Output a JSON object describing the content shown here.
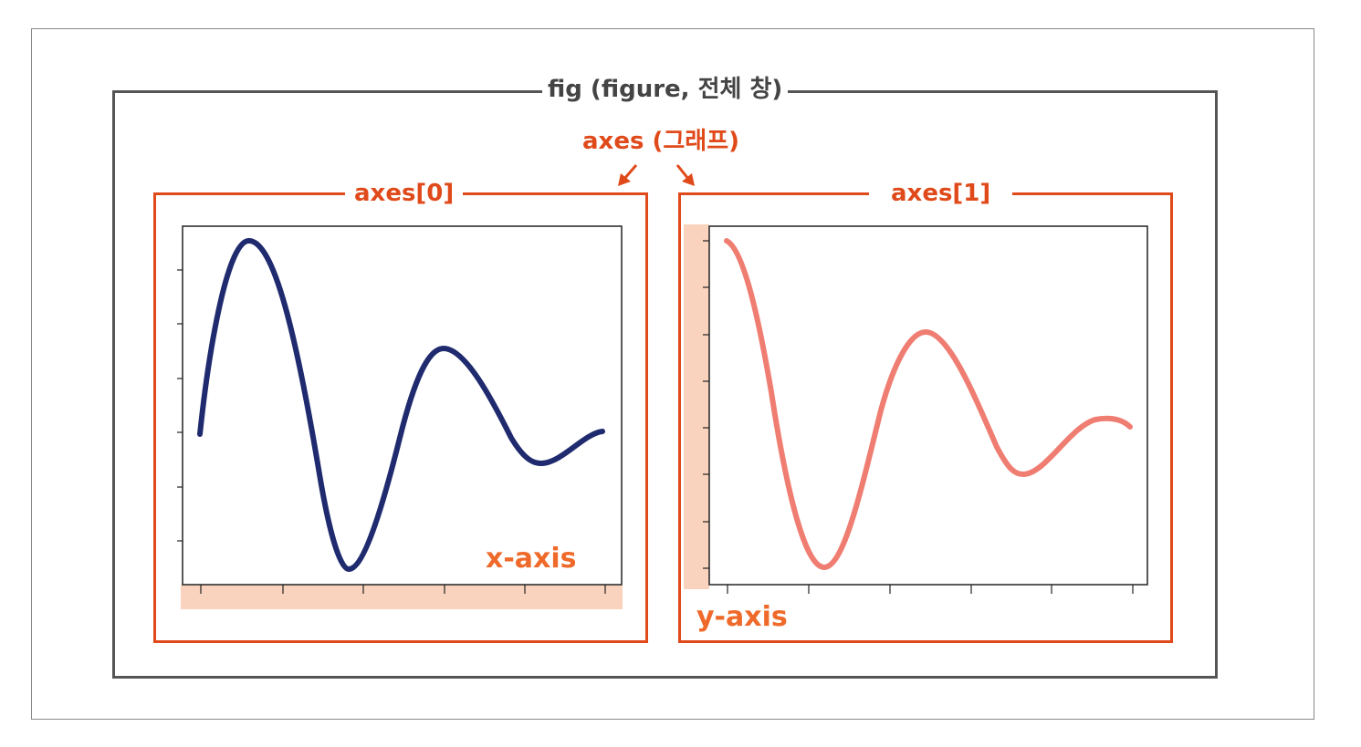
{
  "figure": {
    "fig_label": "fig (figure, 전체 창)",
    "axes_label": "axes (그래프)",
    "subplots": [
      {
        "label": "axes[0]",
        "highlight_label": "x-axis",
        "line_color": "#1f2b6e"
      },
      {
        "label": "axes[1]",
        "highlight_label": "y-axis",
        "line_color": "#ef7d71"
      }
    ]
  },
  "colors": {
    "fig_frame": "#555555",
    "axes_frame": "#e04a1a",
    "highlight": "#f9d3bd",
    "axis_label": "#ef6a2a"
  },
  "icons": {
    "arrow_left": "arrow-down-left-icon",
    "arrow_right": "arrow-down-right-icon"
  }
}
